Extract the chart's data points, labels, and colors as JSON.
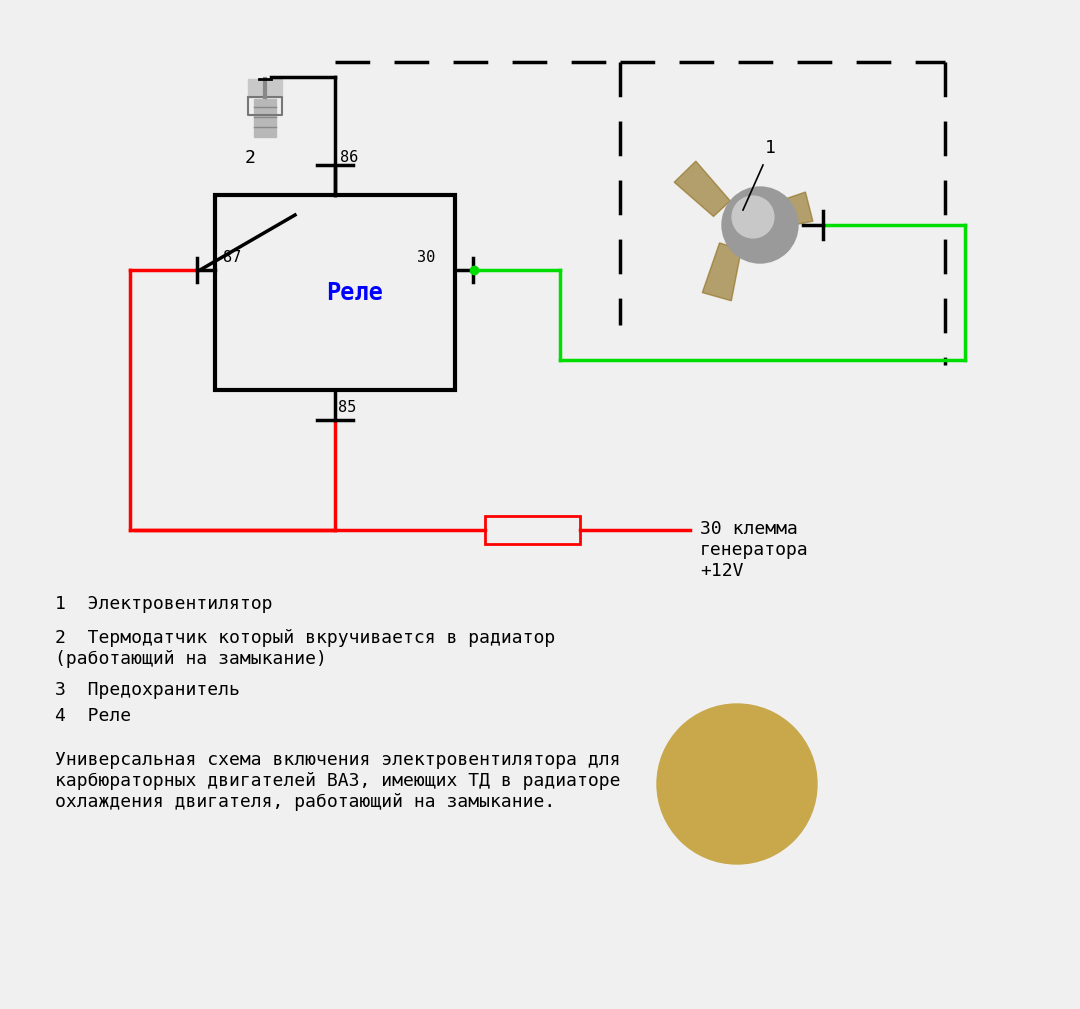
{
  "bg_color": "#f0f0f0",
  "relay_label": "Реле",
  "relay_label_color": "#0000ff",
  "line_color_red": "#ff0000",
  "line_color_green": "#00dd00",
  "line_color_black": "#000000",
  "generator_label": "30 клемма\nгенератора\n+12V",
  "label_1": "1  Электровентилятор",
  "label_2": "2  Термодатчик который вкручивается в радиатор\n(работающий на замыкание)",
  "label_3": "3  Предохранитель",
  "label_4": "4  Реле",
  "description": "Универсальная схема включения электровентилятора для\nкарбюраторных двигателей ВАЗ, имеющих ТД в радиаторе\nохлаждения двигателя, работающий на замыкание.",
  "font_size_labels": 13,
  "font_size_pins": 11,
  "font_size_desc": 13
}
